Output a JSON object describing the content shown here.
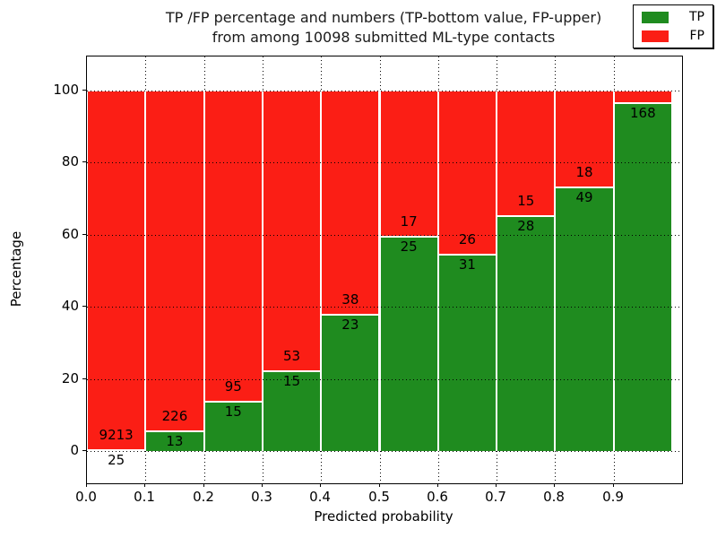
{
  "title": {
    "line1": "TP /FP percentage and numbers (TP-bottom value, FP-upper)",
    "line2": "from among 10098 submitted ML-type contacts"
  },
  "colors": {
    "tp_green": "#1f8b1f",
    "fp_red": "#fb1e15",
    "grid": "#000000",
    "background": "#ffffff"
  },
  "chart_data": {
    "type": "bar",
    "stacked": true,
    "title": "TP /FP percentage and numbers (TP-bottom value, FP-upper) from among 10098 submitted ML-type contacts",
    "xlabel": "Predicted probability",
    "ylabel": "Percentage",
    "x_tick_labels": [
      "0.0",
      "0.1",
      "0.2",
      "0.3",
      "0.4",
      "0.5",
      "0.6",
      "0.7",
      "0.8",
      "0.9"
    ],
    "y_ticks": [
      0,
      20,
      40,
      60,
      80,
      100
    ],
    "ylim": [
      -9,
      109
    ],
    "xlim": [
      0.0,
      1.016
    ],
    "grid": "dotted black, vertical lines under bars, horizontal lines over bars",
    "total_submitted_contacts": 10098,
    "legend": {
      "position": "upper right",
      "entries": [
        {
          "label": "TP",
          "color": "#1f8b1f"
        },
        {
          "label": "FP",
          "color": "#fb1e15"
        }
      ]
    },
    "bars": [
      {
        "x_range": [
          0.0,
          0.1
        ],
        "tp": 25,
        "fp": 9213,
        "tp_pct": 0.3
      },
      {
        "x_range": [
          0.1,
          0.2
        ],
        "tp": 13,
        "fp": 226,
        "tp_pct": 5.4
      },
      {
        "x_range": [
          0.2,
          0.3
        ],
        "tp": 15,
        "fp": 95,
        "tp_pct": 13.6
      },
      {
        "x_range": [
          0.3,
          0.4
        ],
        "tp": 15,
        "fp": 53,
        "tp_pct": 22.1
      },
      {
        "x_range": [
          0.4,
          0.5
        ],
        "tp": 23,
        "fp": 38,
        "tp_pct": 37.7
      },
      {
        "x_range": [
          0.5,
          0.6
        ],
        "tp": 25,
        "fp": 17,
        "tp_pct": 59.5
      },
      {
        "x_range": [
          0.6,
          0.7
        ],
        "tp": 31,
        "fp": 26,
        "tp_pct": 54.4
      },
      {
        "x_range": [
          0.7,
          0.8
        ],
        "tp": 28,
        "fp": 15,
        "tp_pct": 65.1
      },
      {
        "x_range": [
          0.8,
          0.9
        ],
        "tp": 49,
        "fp": null,
        "fp_label_hidden_behind_legend": true,
        "tp_pct": 73.1,
        "fp_shown": 18
      },
      {
        "x_range": [
          0.9,
          1.0
        ],
        "tp": 168,
        "fp": null,
        "fp_label_hidden_behind_legend": true,
        "tp_pct": 96.6
      }
    ]
  }
}
